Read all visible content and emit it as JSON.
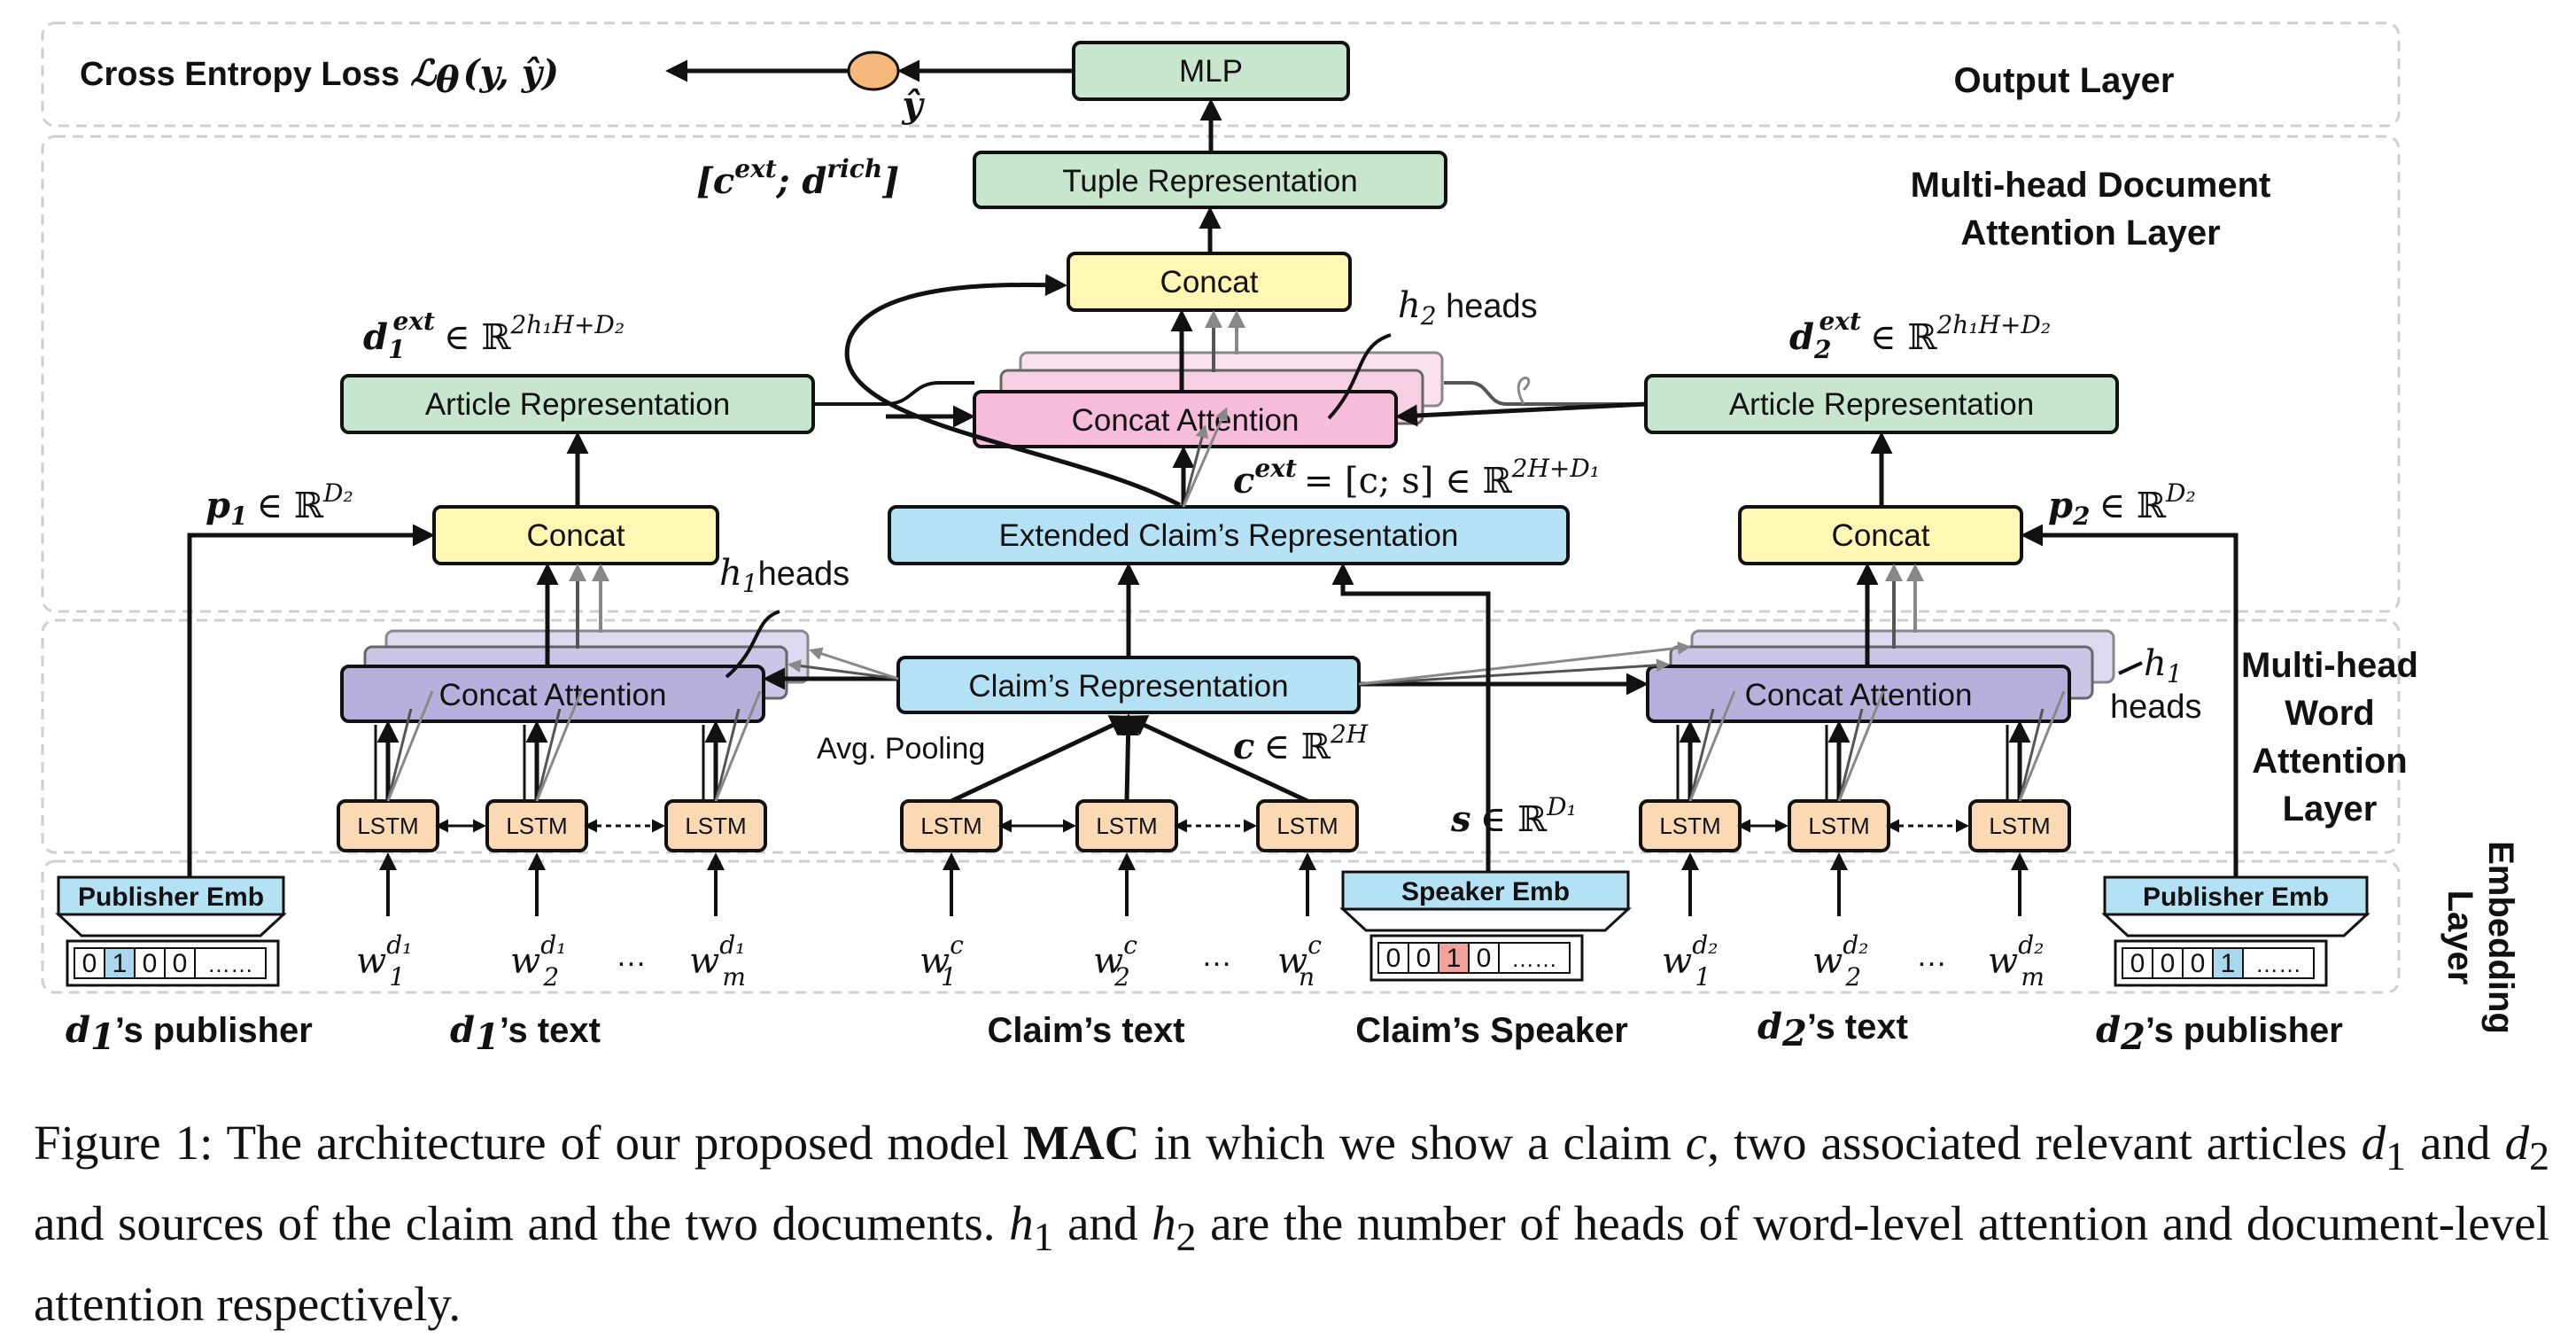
{
  "layers": {
    "output": "Output Layer",
    "doc_attention": [
      "Multi-head Document",
      "Attention Layer"
    ],
    "word_attention": [
      "Multi-head",
      "Word",
      "Attention",
      "Layer"
    ],
    "embedding": [
      "Embedding",
      "Layer"
    ]
  },
  "output": {
    "loss_text": "Cross Entropy Loss",
    "loss_math": "ℒ",
    "loss_sub": "θ",
    "loss_args": "(y, ŷ)",
    "y_hat": "ŷ",
    "mlp": "MLP",
    "tuple": "Tuple Representation",
    "tuple_formula": "[c",
    "tuple_formula_sup1": "ext",
    "tuple_formula_mid": "; d",
    "tuple_formula_sup2": "rich",
    "tuple_formula_end": "]"
  },
  "doc_layer": {
    "concat": "Concat",
    "concat_attention": "Concat Attention",
    "h2_heads": "h",
    "h2_sub": "2",
    "h2_word": " heads",
    "article_rep_left": "Article Representation",
    "article_rep_right": "Article Representation",
    "d1_ext": "d",
    "d1_sub": "1",
    "d1_sup": "ext",
    "d1_space": "∈ ℝ",
    "d1_dim": "2h₁H+D₂",
    "d2_ext": "d",
    "d2_sub": "2",
    "d2_sup": "ext",
    "d2_space": "∈ ℝ",
    "d2_dim": "2h₁H+D₂",
    "c_ext": "c",
    "c_ext_sup": "ext",
    "c_ext_eq": "= [c; s] ∈ ℝ",
    "c_ext_dim": "2H+D₁",
    "extended_claim": "Extended Claim’s Representation",
    "concat_left": "Concat",
    "concat_right": "Concat",
    "p1": "p",
    "p1_sub": "1",
    "p1_space": "∈ ℝ",
    "p1_dim": "D₂",
    "p2": "p",
    "p2_sub": "2",
    "p2_space": "∈ ℝ",
    "p2_dim": "D₂"
  },
  "word_layer": {
    "claim_rep": "Claim’s Representation",
    "concat_attention_left": "Concat Attention",
    "concat_attention_right": "Concat Attention",
    "h1_left": "h",
    "h1_left_sub": "1",
    "h1_left_word": "heads",
    "h1_right": "h",
    "h1_right_sub": "1",
    "h1_right_word": "heads",
    "avg_pooling": "Avg. Pooling",
    "c_space": "c",
    "c_space_rest": "∈ ℝ",
    "c_dim": "2H",
    "s_space": "s",
    "s_space_rest": "∈ ℝ",
    "s_dim": "D₁",
    "lstm": "LSTM"
  },
  "embedding": {
    "publisher_left": "Publisher Emb",
    "speaker": "Speaker Emb",
    "publisher_right": "Publisher Emb",
    "vec_left": [
      "0",
      "1",
      "0",
      "0",
      "……"
    ],
    "vec_speaker": [
      "0",
      "0",
      "1",
      "0",
      "……"
    ],
    "vec_right": [
      "0",
      "0",
      "0",
      "1",
      "……"
    ],
    "dots": "…",
    "w_d1": [
      "w",
      "w",
      "w"
    ],
    "w_d1_subs": [
      "1",
      "2",
      "m"
    ],
    "w_d1_sups": [
      "d₁",
      "d₁",
      "d₁"
    ],
    "w_c_subs": [
      "1",
      "2",
      "n"
    ],
    "w_c_sups": [
      "c",
      "c",
      "c"
    ],
    "w_d2_subs": [
      "1",
      "2",
      "m"
    ],
    "w_d2_sups": [
      "d₂",
      "d₂",
      "d₂"
    ]
  },
  "bottom_labels": {
    "d1_publisher": "’s publisher",
    "d1_text": "’s text",
    "claim_text": "Claim’s text",
    "claim_speaker": "Claim’s Speaker",
    "d2_text": "’s text",
    "d2_publisher": "’s publisher",
    "d1_sym": "d",
    "d1_sym_sub": "1",
    "d2_sym": "d",
    "d2_sym_sub": "2"
  },
  "caption": {
    "p1": "Figure 1: The architecture of our proposed model ",
    "model": "MAC",
    "p2": " in which we show a claim ",
    "c": "c",
    "p3": ", two associated relevant articles ",
    "d1": "d",
    "d1s": "1",
    "p4": " and ",
    "d2": "d",
    "d2s": "2",
    "p5": " and sources of the claim and the two documents. ",
    "h1": "h",
    "h1s": "1",
    "p6": " and ",
    "h2": "h",
    "h2s": "2",
    "p7": " are the number of heads of word-level attention and document-level attention respectively."
  },
  "colors": {
    "green": "#c7e6cd",
    "yellow": "#fff7b3",
    "pink": "#f7bcd9",
    "blue": "#b4e1f3",
    "purple": "#b8b0dc",
    "orange": "#fbd9b4",
    "node": "#f4b97a",
    "red_cell": "#f2a19b",
    "blue_cell": "#a9d8ee"
  }
}
